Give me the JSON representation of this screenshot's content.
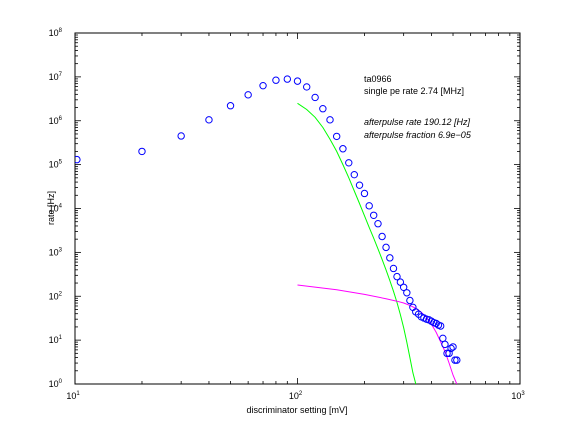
{
  "chart_data": {
    "type": "scatter",
    "title": "",
    "xlabel": "discriminator setting [mV]",
    "ylabel": "rate [Hz]",
    "xscale": "log",
    "yscale": "log",
    "xlim": [
      10,
      1000
    ],
    "ylim": [
      1,
      100000000
    ],
    "grid": false,
    "x_ticks": [
      {
        "value": 10,
        "base": "10",
        "exp": "1"
      },
      {
        "value": 100,
        "base": "10",
        "exp": "2"
      },
      {
        "value": 1000,
        "base": "10",
        "exp": "3"
      }
    ],
    "y_ticks": [
      {
        "value": 1,
        "base": "10",
        "exp": "0"
      },
      {
        "value": 10,
        "base": "10",
        "exp": "1"
      },
      {
        "value": 100,
        "base": "10",
        "exp": "2"
      },
      {
        "value": 1000,
        "base": "10",
        "exp": "3"
      },
      {
        "value": 10000,
        "base": "10",
        "exp": "4"
      },
      {
        "value": 100000,
        "base": "10",
        "exp": "5"
      },
      {
        "value": 1000000,
        "base": "10",
        "exp": "6"
      },
      {
        "value": 10000000,
        "base": "10",
        "exp": "7"
      },
      {
        "value": 100000000,
        "base": "10",
        "exp": "8"
      }
    ],
    "marker_color": "#0000ff",
    "points": {
      "x": [
        10.2,
        20,
        30,
        40,
        50,
        60,
        70,
        80,
        90,
        100,
        110,
        120,
        130,
        140,
        150,
        160,
        170,
        180,
        190,
        200,
        210,
        220,
        230,
        240,
        250,
        260,
        270,
        280,
        290,
        300,
        310,
        320,
        330,
        340,
        350,
        360,
        370,
        380,
        390,
        400,
        410,
        420,
        430,
        440,
        450,
        460,
        470,
        480,
        490,
        500,
        510,
        520
      ],
      "y": [
        130000,
        200000,
        450000,
        1050000,
        2200000,
        3900000,
        6300000,
        8400000,
        8900000,
        8000000,
        5900000,
        3400000,
        1880000,
        1050000,
        440000,
        230000,
        110000,
        59000,
        34000,
        22000,
        11500,
        7000,
        4500,
        2300,
        1300,
        750,
        430,
        280,
        210,
        160,
        120,
        80,
        56,
        44,
        39,
        34,
        32,
        30,
        29,
        27,
        25,
        24,
        22,
        21,
        11,
        8,
        5,
        5,
        6.5,
        7,
        3.5,
        3.5
      ]
    },
    "curves": [
      {
        "color": "#00ff00",
        "x": [
          100,
          110,
          120,
          130,
          140,
          150,
          160,
          170,
          180,
          190,
          200,
          210,
          220,
          230,
          240,
          250,
          260,
          270,
          280,
          290,
          300,
          310,
          320,
          330,
          340
        ],
        "y": [
          2500000,
          1800000,
          1200000,
          700000,
          380000,
          200000,
          100000,
          50000,
          25000,
          13000,
          6800,
          3700,
          2100,
          1200,
          690,
          400,
          230,
          130,
          72,
          38,
          19,
          9,
          4,
          1.8,
          1
        ]
      },
      {
        "color": "#ff00ff",
        "x": [
          100,
          150,
          200,
          250,
          280,
          300,
          320,
          340,
          360,
          380,
          400,
          420,
          440,
          460,
          480,
          500,
          520
        ],
        "y": [
          180,
          140,
          110,
          88,
          77,
          70,
          62,
          53,
          43,
          33,
          23,
          15,
          9,
          5.5,
          3,
          1.6,
          1
        ]
      }
    ],
    "annotations": [
      "ta0966",
      "single pe rate 2.74 [MHz]",
      "afterpulse rate 190.12 [Hz]",
      "afterpulse fraction 6.9e−05"
    ]
  }
}
